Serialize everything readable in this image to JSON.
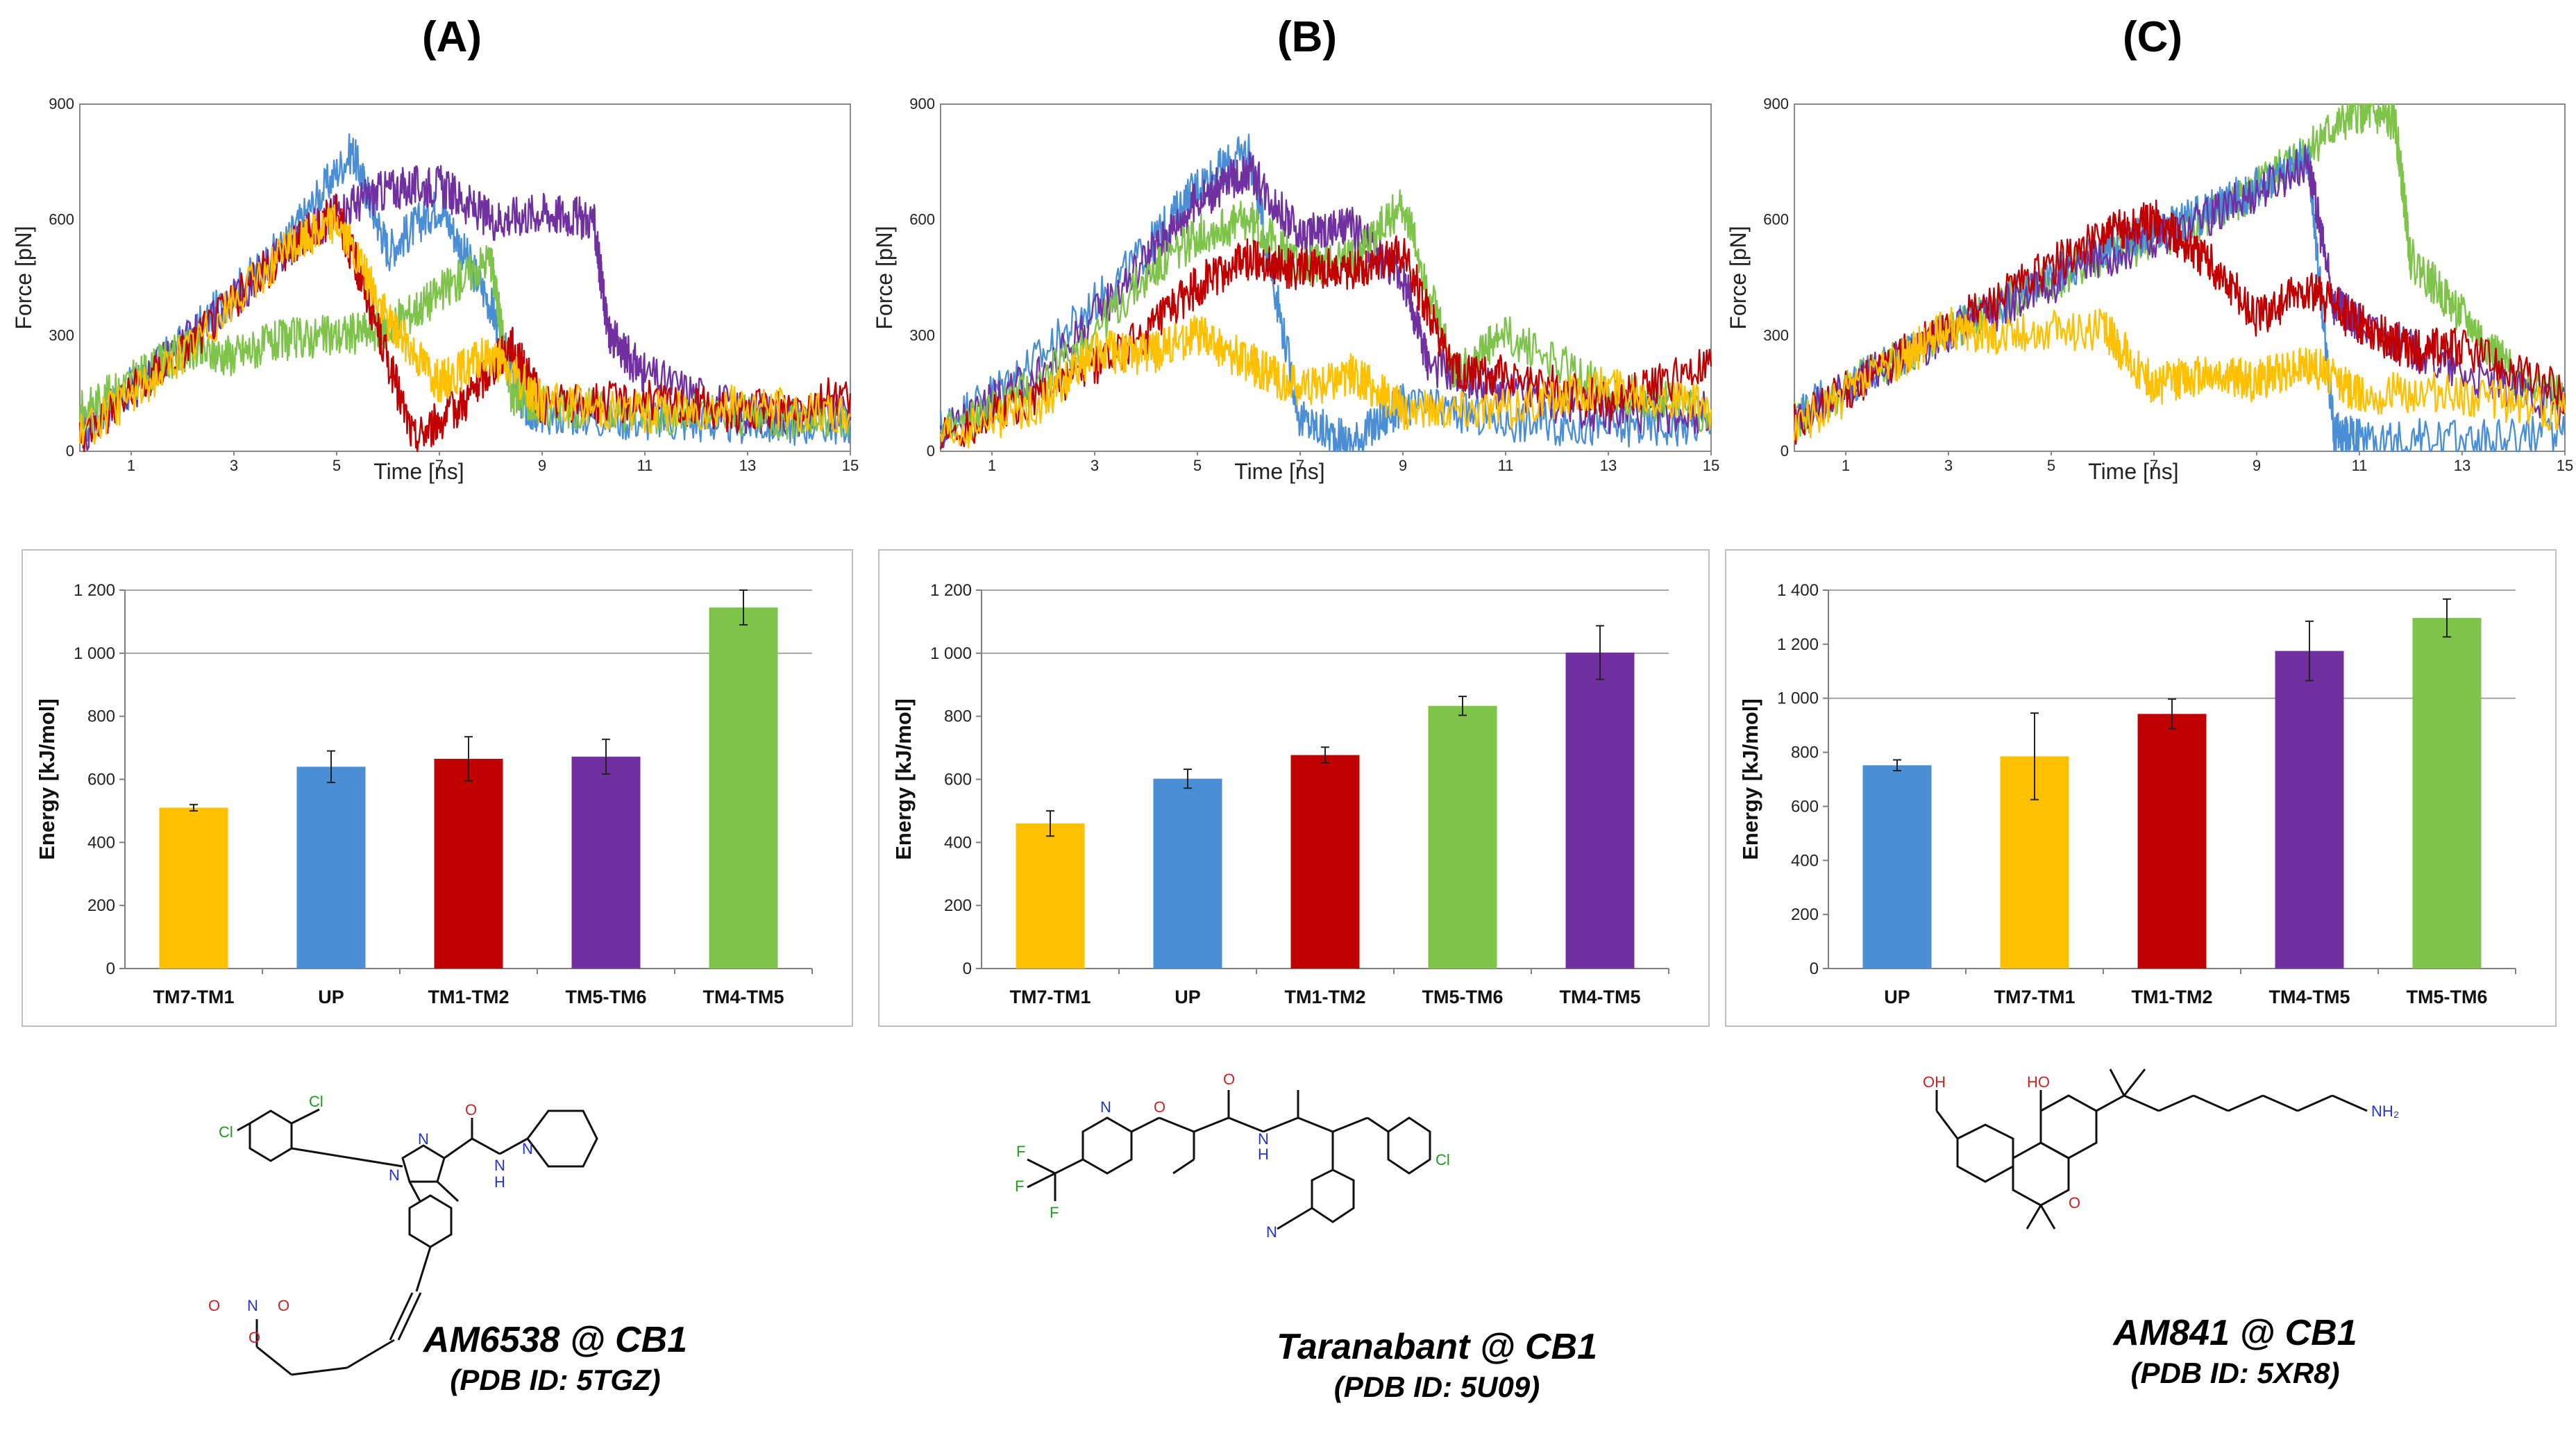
{
  "panels": [
    {
      "label": "(A)",
      "caption_main": "AM6538 @ CB1",
      "caption_sub": "(PDB ID: 5TGZ)"
    },
    {
      "label": "(B)",
      "caption_main": "Taranabant @ CB1",
      "caption_sub": "(PDB ID: 5U09)"
    },
    {
      "label": "(C)",
      "caption_main": "AM841 @ CB1",
      "caption_sub": "(PDB ID: 5XR8)"
    }
  ],
  "colors": {
    "yellow": "#ffc000",
    "blue": "#4a8ed6",
    "red": "#c00000",
    "purple": "#7030a0",
    "green": "#7ec34a"
  },
  "chart_data": [
    {
      "type": "line",
      "panel": "A",
      "xlabel": "Time [ns]",
      "ylabel": "Force [pN]",
      "xlim": [
        0,
        15
      ],
      "ylim": [
        0,
        900
      ],
      "xticks": [
        1,
        3,
        5,
        7,
        9,
        11,
        13,
        15
      ],
      "yticks": [
        0,
        300,
        600,
        900
      ],
      "series": [
        {
          "name": "blue",
          "color": "#4a8ed6",
          "x": [
            0,
            2,
            4,
            5.3,
            6,
            7,
            8,
            8.6,
            9,
            11,
            13,
            15
          ],
          "y": [
            50,
            280,
            540,
            780,
            520,
            640,
            380,
            120,
            100,
            80,
            70,
            70
          ]
        },
        {
          "name": "purple",
          "color": "#7030a0",
          "x": [
            0,
            2,
            4,
            5,
            6,
            7,
            8,
            9,
            10,
            10.3,
            11,
            13,
            15
          ],
          "y": [
            40,
            270,
            520,
            620,
            680,
            690,
            600,
            620,
            600,
            300,
            200,
            100,
            90
          ]
        },
        {
          "name": "green",
          "color": "#7ec34a",
          "x": [
            0,
            1,
            2,
            3,
            4,
            5,
            6,
            7,
            8,
            8.4,
            9,
            11,
            13,
            15
          ],
          "y": [
            100,
            180,
            260,
            250,
            290,
            300,
            320,
            410,
            500,
            150,
            120,
            100,
            90,
            80
          ]
        },
        {
          "name": "red",
          "color": "#c00000",
          "x": [
            0,
            2,
            4,
            5,
            5.5,
            6.5,
            7.5,
            8.4,
            9,
            11,
            13,
            15
          ],
          "y": [
            40,
            260,
            520,
            620,
            440,
            30,
            130,
            280,
            120,
            130,
            100,
            150
          ]
        },
        {
          "name": "yellow",
          "color": "#ffc000",
          "x": [
            0,
            2,
            4,
            5,
            6,
            7,
            8,
            9,
            11,
            13,
            15
          ],
          "y": [
            40,
            250,
            520,
            600,
            340,
            180,
            250,
            130,
            100,
            120,
            90
          ]
        }
      ]
    },
    {
      "type": "line",
      "panel": "B",
      "xlabel": "Time [ns]",
      "ylabel": "Force [pN]",
      "xlim": [
        0,
        15
      ],
      "ylim": [
        0,
        900
      ],
      "xticks": [
        1,
        3,
        5,
        7,
        9,
        11,
        13,
        15
      ],
      "yticks": [
        0,
        300,
        600,
        900
      ],
      "series": [
        {
          "name": "blue",
          "color": "#4a8ed6",
          "x": [
            0,
            2,
            4,
            5,
            6,
            7,
            8,
            9,
            11,
            13,
            15
          ],
          "y": [
            60,
            250,
            520,
            690,
            780,
            80,
            20,
            120,
            80,
            60,
            70
          ]
        },
        {
          "name": "purple",
          "color": "#7030a0",
          "x": [
            0,
            2,
            4,
            5,
            6,
            7,
            8,
            9,
            9.5,
            11,
            13,
            15
          ],
          "y": [
            50,
            200,
            500,
            650,
            730,
            560,
            580,
            450,
            230,
            150,
            100,
            100
          ]
        },
        {
          "name": "green",
          "color": "#7ec34a",
          "x": [
            0,
            2,
            4,
            5,
            6,
            7,
            8,
            9,
            10,
            11,
            13,
            15
          ],
          "y": [
            40,
            180,
            450,
            560,
            600,
            480,
            500,
            640,
            200,
            300,
            160,
            100
          ]
        },
        {
          "name": "red",
          "color": "#c00000",
          "x": [
            0,
            2,
            4,
            5,
            6,
            7,
            8,
            9,
            10,
            11,
            13,
            15
          ],
          "y": [
            30,
            150,
            300,
            430,
            500,
            470,
            470,
            520,
            200,
            200,
            130,
            220
          ]
        },
        {
          "name": "yellow",
          "color": "#ffc000",
          "x": [
            0,
            2,
            3,
            4,
            5,
            6,
            7,
            8,
            9,
            11,
            13,
            15
          ],
          "y": [
            30,
            130,
            260,
            250,
            300,
            230,
            160,
            200,
            110,
            110,
            170,
            110
          ]
        }
      ]
    },
    {
      "type": "line",
      "panel": "C",
      "xlabel": "Time [ns]",
      "ylabel": "Force [pN]",
      "xlim": [
        0,
        15
      ],
      "ylim": [
        0,
        900
      ],
      "xticks": [
        1,
        3,
        5,
        7,
        9,
        11,
        13,
        15
      ],
      "yticks": [
        0,
        300,
        600,
        900
      ],
      "series": [
        {
          "name": "green",
          "color": "#7ec34a",
          "x": [
            0,
            2,
            4,
            6,
            8,
            9,
            10,
            11,
            11.7,
            12,
            13,
            14,
            15
          ],
          "y": [
            80,
            240,
            380,
            500,
            600,
            680,
            790,
            880,
            850,
            500,
            350,
            200,
            130
          ]
        },
        {
          "name": "blue",
          "color": "#4a8ed6",
          "x": [
            0,
            2,
            4,
            6,
            7,
            8,
            9,
            10,
            10.5,
            11,
            13,
            15
          ],
          "y": [
            90,
            240,
            380,
            520,
            570,
            620,
            680,
            760,
            50,
            30,
            30,
            40
          ]
        },
        {
          "name": "purple",
          "color": "#7030a0",
          "x": [
            0,
            2,
            4,
            6,
            8,
            10,
            10.5,
            11,
            13,
            15
          ],
          "y": [
            80,
            240,
            370,
            500,
            600,
            750,
            380,
            330,
            200,
            120
          ]
        },
        {
          "name": "red",
          "color": "#c00000",
          "x": [
            0,
            2,
            4,
            6,
            7,
            8,
            9,
            10,
            11,
            12,
            13,
            15
          ],
          "y": [
            70,
            240,
            400,
            560,
            600,
            500,
            350,
            420,
            330,
            260,
            270,
            150
          ]
        },
        {
          "name": "yellow",
          "color": "#ffc000",
          "x": [
            0,
            2,
            3,
            4,
            6,
            7,
            8,
            9,
            10,
            11,
            13,
            15
          ],
          "y": [
            60,
            230,
            320,
            300,
            320,
            170,
            200,
            180,
            230,
            150,
            150,
            100
          ]
        }
      ]
    },
    {
      "type": "bar",
      "panel": "A",
      "ylabel": "Energy  [kJ/mol]",
      "ylim": [
        0,
        1200
      ],
      "yticks": [
        0,
        200,
        400,
        600,
        800,
        "1 000",
        "1 200"
      ],
      "categories": [
        "TM7-TM1",
        "UP",
        "TM1-TM2",
        "TM5-TM6",
        "TM4-TM5"
      ],
      "values": [
        510,
        640,
        665,
        672,
        1145
      ],
      "errors": [
        10,
        50,
        70,
        55,
        55
      ],
      "bar_colors": [
        "#ffc000",
        "#4a8ed6",
        "#c00000",
        "#7030a0",
        "#7ec34a"
      ]
    },
    {
      "type": "bar",
      "panel": "B",
      "ylabel": "Energy  [kJ/mol]",
      "ylim": [
        0,
        1200
      ],
      "yticks": [
        0,
        200,
        400,
        600,
        800,
        "1 000",
        "1 200"
      ],
      "categories": [
        "TM7-TM1",
        "UP",
        "TM1-TM2",
        "TM5-TM6",
        "TM4-TM5"
      ],
      "values": [
        460,
        602,
        677,
        833,
        1002
      ],
      "errors": [
        40,
        30,
        25,
        30,
        85
      ],
      "bar_colors": [
        "#ffc000",
        "#4a8ed6",
        "#c00000",
        "#7ec34a",
        "#7030a0"
      ]
    },
    {
      "type": "bar",
      "panel": "C",
      "ylabel": "Energy  [kJ/mol]",
      "ylim": [
        0,
        1400
      ],
      "yticks": [
        0,
        200,
        400,
        600,
        800,
        "1 000",
        "1 200",
        "1 400"
      ],
      "categories": [
        "UP",
        "TM7-TM1",
        "TM1-TM2",
        "TM4-TM5",
        "TM5-TM6"
      ],
      "values": [
        752,
        785,
        942,
        1175,
        1297
      ],
      "errors": [
        20,
        160,
        55,
        110,
        70
      ],
      "bar_colors": [
        "#4a8ed6",
        "#ffc000",
        "#c00000",
        "#7030a0",
        "#7ec34a"
      ]
    }
  ],
  "molecules": {
    "A": {
      "atoms": [
        "Cl",
        "Cl",
        "N",
        "N",
        "O",
        "N",
        "N",
        "H",
        "O",
        "N",
        "O",
        "O"
      ]
    },
    "B": {
      "atoms": [
        "N",
        "O",
        "O",
        "N",
        "H",
        "F",
        "F",
        "F",
        "Cl",
        "N"
      ]
    },
    "C": {
      "atoms": [
        "HO",
        "OH",
        "O",
        "NH₂"
      ]
    }
  }
}
